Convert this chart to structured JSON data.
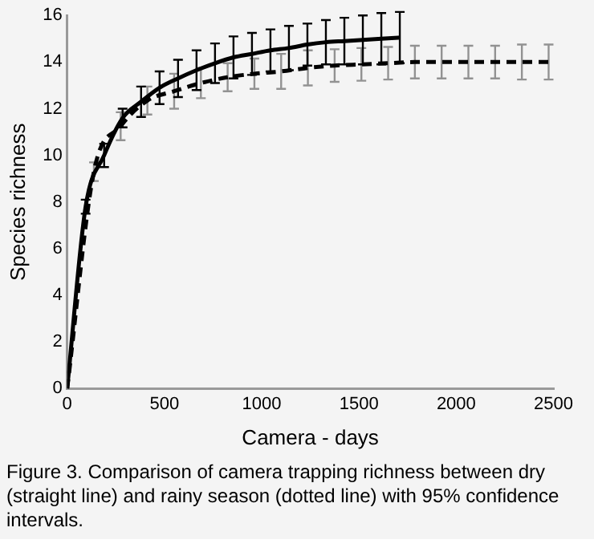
{
  "chart_data": {
    "type": "line",
    "xlabel": "Camera - days",
    "ylabel": "Species richness",
    "annotations": [
      "Figure 3. Comparison of camera trapping richness between dry (straight line) and rainy season (dotted line) with 95% confidence intervals."
    ],
    "xlim": [
      0,
      2500
    ],
    "xticks": [
      0,
      500,
      1000,
      1500,
      2000,
      2500
    ],
    "ylim": [
      0,
      16
    ],
    "yticks": [
      0,
      2,
      4,
      6,
      8,
      10,
      12,
      14,
      16
    ],
    "grid": false,
    "legend": false,
    "marker": "none",
    "series": [
      {
        "color": "#000000",
        "line_style": "solid",
        "x": [
          0,
          95,
          190,
          285,
          380,
          475,
          570,
          665,
          760,
          855,
          950,
          1045,
          1140,
          1235,
          1330,
          1425,
          1520,
          1615,
          1710
        ],
        "values": [
          0,
          7.8,
          10.0,
          11.6,
          12.3,
          12.9,
          13.3,
          13.65,
          13.95,
          14.2,
          14.35,
          14.5,
          14.6,
          14.75,
          14.85,
          14.9,
          14.95,
          15.0,
          15.05
        ],
        "errors": [
          null,
          0.3,
          0.5,
          0.4,
          0.65,
          0.7,
          0.8,
          0.85,
          0.85,
          0.9,
          0.9,
          0.9,
          0.95,
          0.9,
          0.95,
          1.0,
          1.05,
          1.1,
          1.1
        ]
      },
      {
        "color": "#000000",
        "line_style": "dashed",
        "x": [
          0,
          137.5,
          275,
          412.5,
          550,
          687.5,
          825,
          962.5,
          1100,
          1237.5,
          1375,
          1512.5,
          1650,
          1787.5,
          1925,
          2062.5,
          2200,
          2337.5,
          2475
        ],
        "values": [
          0,
          9.3,
          11.25,
          12.35,
          12.75,
          13.1,
          13.35,
          13.5,
          13.6,
          13.75,
          13.85,
          13.9,
          13.95,
          14.0,
          14.0,
          14.0,
          14.0,
          14.0,
          14.0
        ],
        "errors": [
          null,
          0.4,
          0.6,
          0.6,
          0.75,
          0.65,
          0.6,
          0.65,
          0.75,
          0.75,
          0.7,
          0.7,
          0.7,
          0.7,
          0.7,
          0.7,
          0.7,
          0.75,
          0.75
        ]
      }
    ]
  }
}
